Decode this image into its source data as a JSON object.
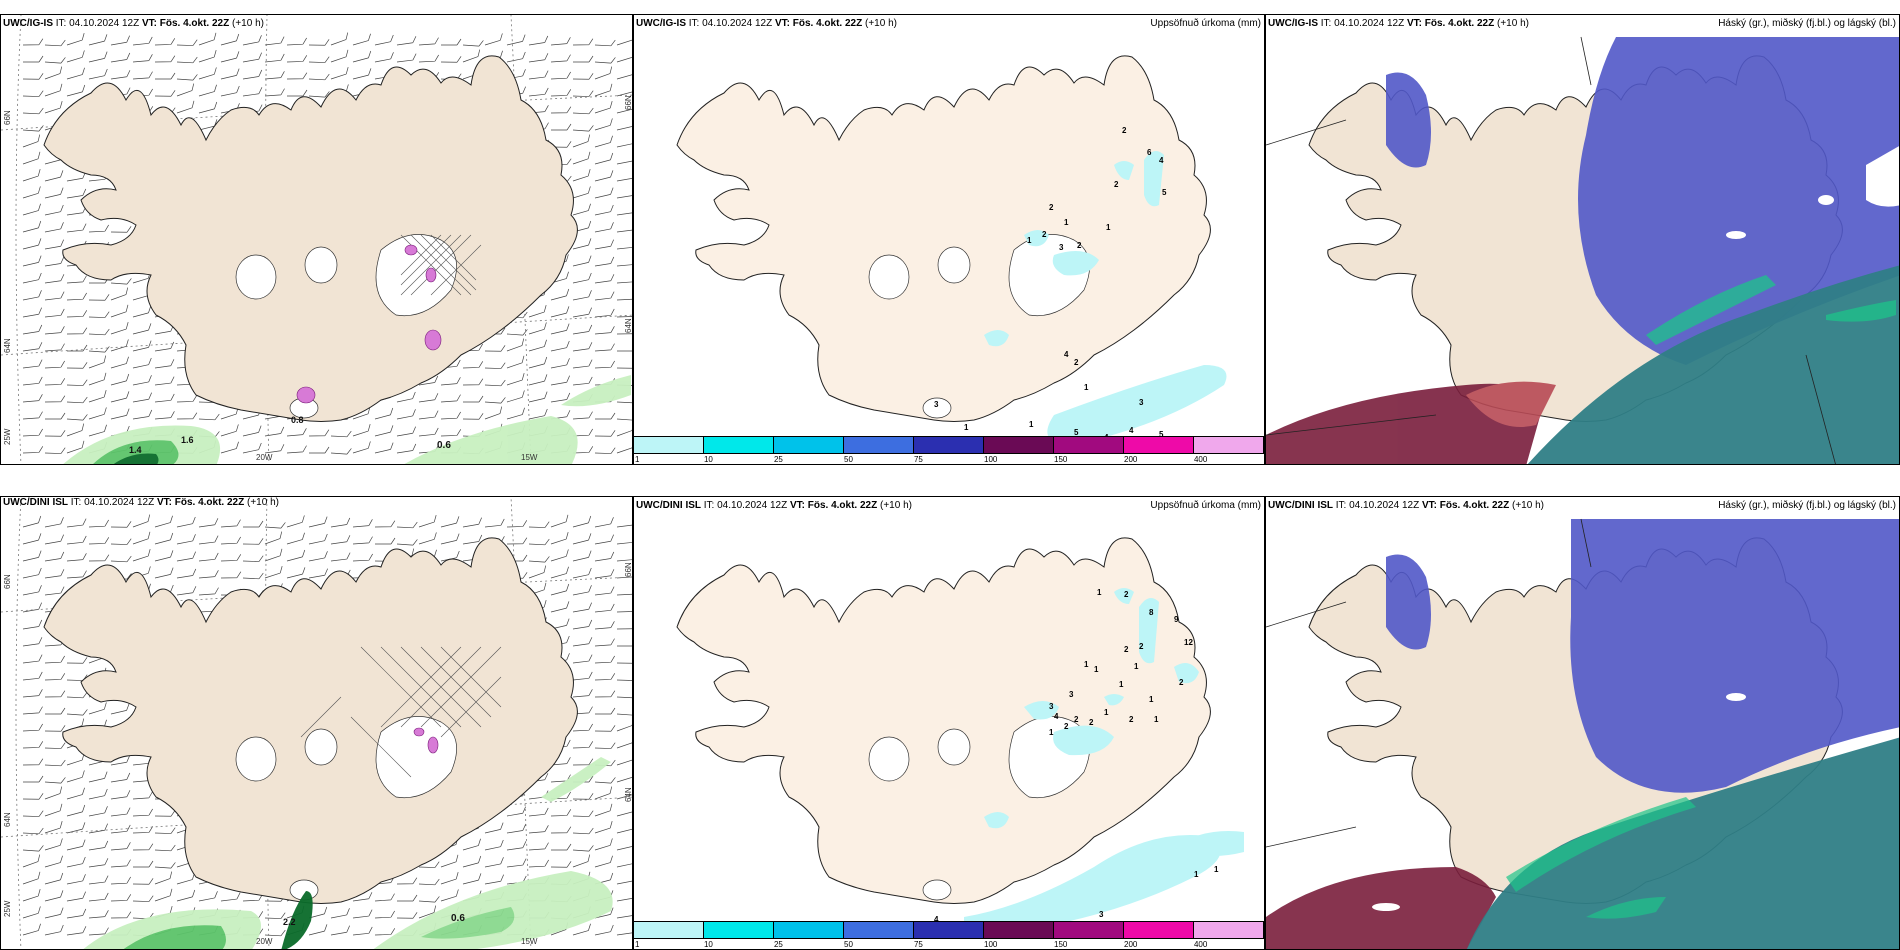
{
  "panels": {
    "top_left": {
      "model": "UWC/IG-IS",
      "it_label": "IT:",
      "it_value": "04.10.2024 12Z",
      "vt_label": "VT:",
      "vt_value": "Fös. 4.okt. 22Z",
      "lead": "(+10 h)"
    },
    "top_mid": {
      "model": "UWC/IG-IS",
      "it_label": "IT:",
      "it_value": "04.10.2024 12Z",
      "vt_label": "VT:",
      "vt_value": "Fös. 4.okt. 22Z",
      "lead": "(+10 h)",
      "right_title": "Uppsöfnuð úrkoma (mm)"
    },
    "top_right": {
      "model": "UWC/IG-IS",
      "it_label": "IT:",
      "it_value": "04.10.2024 12Z",
      "vt_label": "VT:",
      "vt_value": "Fös. 4.okt. 22Z",
      "lead": "(+10 h)",
      "right_title": "Háský (gr.), miðský (fj.bl.) og lágský (bl.)"
    },
    "bot_left": {
      "model": "UWC/DINI ISL",
      "it_label": "IT:",
      "it_value": "04.10.2024 12Z",
      "vt_label": "VT:",
      "vt_value": "Fös. 4.okt. 22Z",
      "lead": "(+10 h)"
    },
    "bot_mid": {
      "model": "UWC/DINI ISL",
      "it_label": "IT:",
      "it_value": "04.10.2024 12Z",
      "vt_label": "VT:",
      "vt_value": "Fös. 4.okt. 22Z",
      "lead": "(+10 h)",
      "right_title": "Uppsöfnuð úrkoma (mm)"
    },
    "bot_right": {
      "model": "UWC/DINI ISL",
      "it_label": "IT:",
      "it_value": "04.10.2024 12Z",
      "vt_label": "VT:",
      "vt_value": "Fös. 4.okt. 22Z",
      "lead": "(+10 h)",
      "right_title": "Háský (gr.), miðský (fj.bl.) og lágský (bl.)"
    }
  },
  "grid_labels": {
    "lat_66": "66N",
    "lat_64": "64N",
    "lon_25": "25W",
    "lon_20": "20W",
    "lon_15": "15W"
  },
  "wind_map_labels": {
    "top_sea_value": "0.6",
    "bot_sea_value": "0.6",
    "top_cluster_a": "1.6",
    "top_cluster_b": "1.4",
    "top_cluster_c": "0.8",
    "bot_cluster_a": "2.2"
  },
  "precip_colorbar": {
    "ticks": [
      "1",
      "10",
      "25",
      "50",
      "75",
      "100",
      "150",
      "200",
      "400"
    ],
    "colors": [
      "#bdf5f7",
      "#00e8ea",
      "#00c2ea",
      "#3d6ee0",
      "#2b2fb0",
      "#6a0a55",
      "#a10a7f",
      "#ee0aa8",
      "#f0a8ec"
    ]
  },
  "precip_labels_top": [
    "2",
    "6",
    "4",
    "2",
    "5",
    "2",
    "1",
    "2",
    "3",
    "2",
    "1",
    "1",
    "4",
    "2",
    "3",
    "1",
    "5",
    "4",
    "1",
    "3",
    "1",
    "5",
    "4"
  ],
  "precip_labels_bot": [
    "1",
    "2",
    "8",
    "9",
    "12",
    "2",
    "2",
    "2",
    "1",
    "1",
    "3",
    "1",
    "1",
    "4",
    "2",
    "3",
    "2",
    "1",
    "2",
    "1",
    "1",
    "4",
    "1",
    "1",
    "3",
    "2",
    "1"
  ],
  "colors": {
    "land": "#f1e4d4",
    "land_precip": "#fbf0e4",
    "sea": "#ffffff",
    "green_light": "#c8f0c0",
    "green_mid": "#5cc46a",
    "green_dark": "#0a6b2a",
    "cloud_high": "#5158c8",
    "cloud_mid": "#2f7e86",
    "cloud_low": "#7a1e3c"
  }
}
